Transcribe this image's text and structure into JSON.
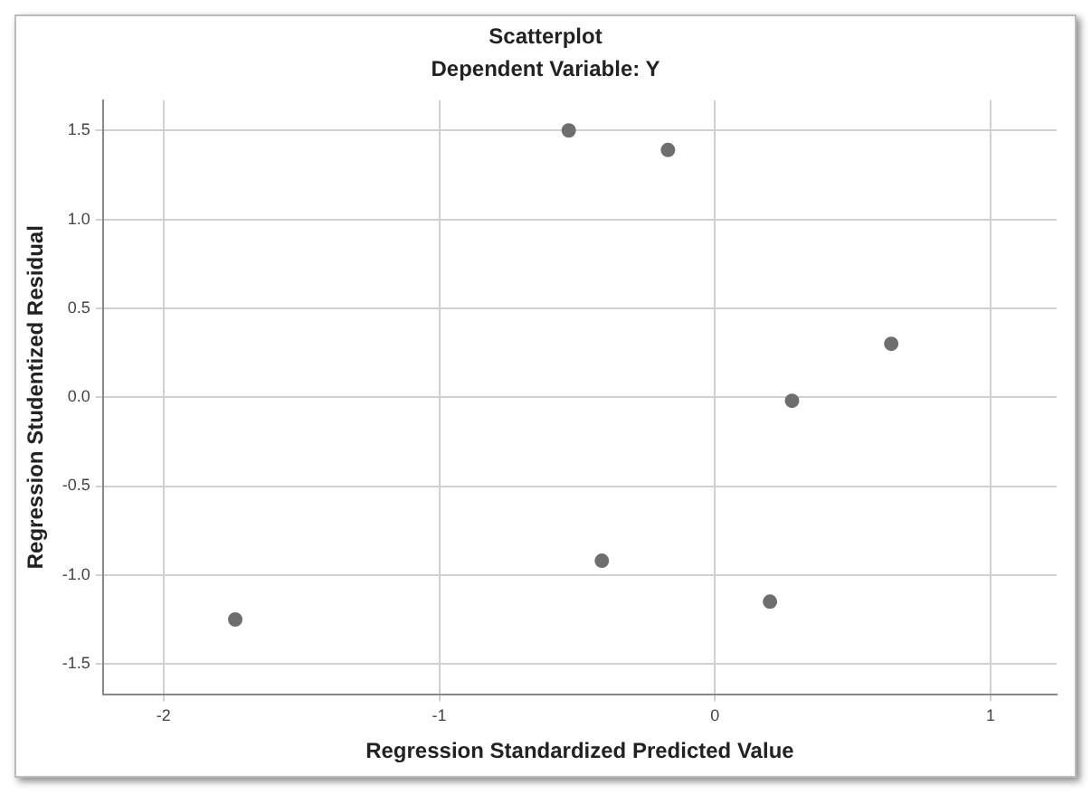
{
  "chart_data": {
    "type": "scatter",
    "title": "Scatterplot",
    "subtitle": "Dependent Variable: Y",
    "xlabel": "Regression Standardized Predicted Value",
    "ylabel": "Regression Studentized Residual",
    "x": [
      -0.53,
      -0.17,
      0.64,
      0.28,
      -0.41,
      0.2,
      -1.74
    ],
    "values": [
      1.5,
      1.39,
      0.3,
      -0.02,
      -0.92,
      -1.15,
      -1.25
    ],
    "color": "#6e6e6e",
    "marker": "circle",
    "xlim": [
      -2.22,
      1.24
    ],
    "xticks": [
      -2,
      -1,
      0,
      1
    ],
    "ylim": [
      -1.67,
      1.67
    ],
    "yticks": [
      -1.5,
      {
        "value": -1,
        "label": "-1.0"
      },
      -0.5,
      {
        "value": 0,
        "label": "0.0"
      },
      0.5,
      {
        "value": 1,
        "label": "1.0"
      },
      1.5
    ],
    "grid": true,
    "legend": false
  }
}
